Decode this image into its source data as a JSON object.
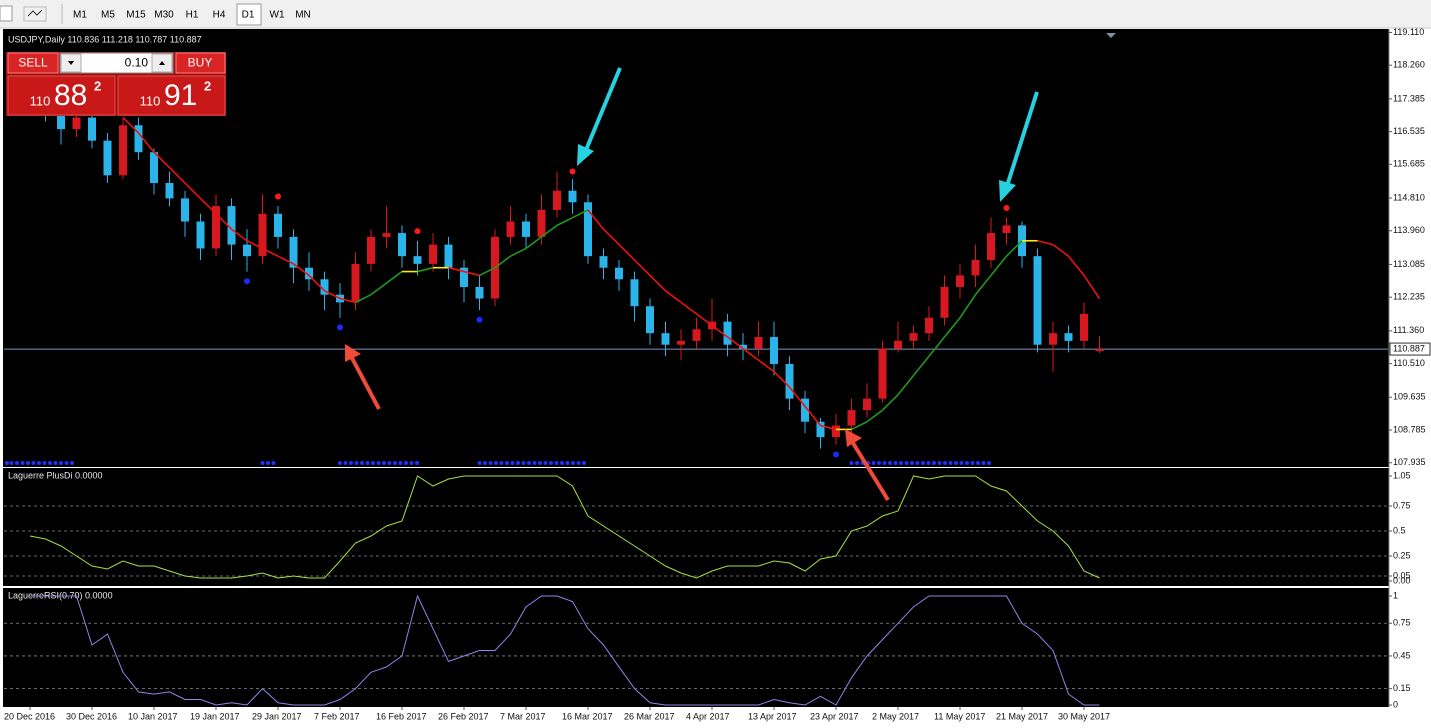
{
  "toolbar": {
    "timeframes": [
      "M1",
      "M5",
      "M15",
      "M30",
      "H1",
      "H4",
      "D1",
      "W1",
      "MN"
    ],
    "active": 6
  },
  "trade_panel": {
    "sell": "SELL",
    "buy": "BUY",
    "volume": "0.10",
    "bid": {
      "big": "110",
      "figure": "88",
      "point": "2"
    },
    "ask": {
      "big": "110",
      "figure": "91",
      "point": "2"
    }
  },
  "chart_data": [
    {
      "type": "candlestick",
      "title": "USDJPY,Daily 110.836 111.218 110.787 110.887",
      "categories": [
        "20 Dec 2016",
        null,
        null,
        null,
        "30 Dec 2016",
        null,
        null,
        null,
        "10 Jan 2017",
        null,
        null,
        null,
        "19 Jan 2017",
        null,
        null,
        null,
        "29 Jan 2017",
        null,
        null,
        null,
        "7 Feb 2017",
        null,
        null,
        null,
        "16 Feb 2017",
        null,
        null,
        null,
        "26 Feb 2017",
        null,
        null,
        null,
        "7 Mar 2017",
        null,
        null,
        null,
        "16 Mar 2017",
        null,
        null,
        null,
        "26 Mar 2017",
        null,
        null,
        null,
        "4 Apr 2017",
        null,
        null,
        null,
        "13 Apr 2017",
        null,
        null,
        null,
        "23 Apr 2017",
        null,
        null,
        null,
        "2 May 2017",
        null,
        null,
        null,
        "11 May 2017",
        null,
        null,
        null,
        "21 May 2017",
        null,
        null,
        null,
        "30 May 2017",
        null
      ],
      "open": [
        117.6,
        117.4,
        117.0,
        116.6,
        116.9,
        116.3,
        115.4,
        116.7,
        116.0,
        115.2,
        114.8,
        114.2,
        113.5,
        114.6,
        113.6,
        113.3,
        114.4,
        113.8,
        113.0,
        112.7,
        112.3,
        112.1,
        113.1,
        113.8,
        113.9,
        113.3,
        113.1,
        113.6,
        113.0,
        112.5,
        112.2,
        113.8,
        114.2,
        113.8,
        114.5,
        115.0,
        114.7,
        113.3,
        113.0,
        112.7,
        112.0,
        111.3,
        111.0,
        111.1,
        111.4,
        111.6,
        111.0,
        110.9,
        111.2,
        110.5,
        109.6,
        109.0,
        108.6,
        108.9,
        109.3,
        109.6,
        110.9,
        111.1,
        111.3,
        111.7,
        112.5,
        112.8,
        113.2,
        113.9,
        114.1,
        113.3,
        111.0,
        111.3,
        111.1,
        110.836
      ],
      "high": [
        117.9,
        117.7,
        117.2,
        117.1,
        117.1,
        116.5,
        116.9,
        116.9,
        116.1,
        115.5,
        115.0,
        114.4,
        114.9,
        114.8,
        114.0,
        114.9,
        114.6,
        114.0,
        113.4,
        112.9,
        112.6,
        113.4,
        114.0,
        114.6,
        114.1,
        113.7,
        113.9,
        113.8,
        113.2,
        112.8,
        114.0,
        114.6,
        114.4,
        114.9,
        115.5,
        115.3,
        114.9,
        113.5,
        113.2,
        112.9,
        112.2,
        111.6,
        111.4,
        111.7,
        112.2,
        111.8,
        111.3,
        111.6,
        111.6,
        110.7,
        109.8,
        109.1,
        109.2,
        109.6,
        110.0,
        111.1,
        111.6,
        111.5,
        112.0,
        112.8,
        113.1,
        113.6,
        114.3,
        114.3,
        114.2,
        113.5,
        111.6,
        111.5,
        112.1,
        111.218
      ],
      "low": [
        117.1,
        116.8,
        116.2,
        116.4,
        116.1,
        115.2,
        115.3,
        115.8,
        114.9,
        114.6,
        113.8,
        113.2,
        113.3,
        113.2,
        112.9,
        113.1,
        113.5,
        112.6,
        112.4,
        111.9,
        111.7,
        111.9,
        112.9,
        113.5,
        113.0,
        112.8,
        112.9,
        112.7,
        112.1,
        111.9,
        112.0,
        113.6,
        113.5,
        113.6,
        114.3,
        114.4,
        113.1,
        112.7,
        112.4,
        111.6,
        111.0,
        110.7,
        110.6,
        110.9,
        111.1,
        110.7,
        110.6,
        110.7,
        110.2,
        109.3,
        108.7,
        108.3,
        108.4,
        108.7,
        109.1,
        109.5,
        110.8,
        110.9,
        111.1,
        111.5,
        112.2,
        112.5,
        113.0,
        113.6,
        113.0,
        110.8,
        110.3,
        110.8,
        110.9,
        110.787
      ],
      "close": [
        117.4,
        117.0,
        116.6,
        116.9,
        116.3,
        115.4,
        116.7,
        116.0,
        115.2,
        114.8,
        114.2,
        113.5,
        114.6,
        113.6,
        113.3,
        114.4,
        113.8,
        113.0,
        112.7,
        112.3,
        112.1,
        113.1,
        113.8,
        113.9,
        113.3,
        113.1,
        113.6,
        113.0,
        112.5,
        112.2,
        113.8,
        114.2,
        113.8,
        114.5,
        115.0,
        114.7,
        113.3,
        113.0,
        112.7,
        112.0,
        111.3,
        111.0,
        111.1,
        111.4,
        111.6,
        111.0,
        110.9,
        111.2,
        110.5,
        109.6,
        109.0,
        108.6,
        108.9,
        109.3,
        109.6,
        110.9,
        111.1,
        111.3,
        111.7,
        112.5,
        112.8,
        113.2,
        113.9,
        114.1,
        113.3,
        111.0,
        111.3,
        111.1,
        111.8,
        110.887
      ],
      "up_color": "#d81820",
      "down_color": "#2ab4ea",
      "ma": {
        "up_color": "#1e9a1e",
        "down_color": "#f01010",
        "flat_color": "#ffee00",
        "values": [
          null,
          null,
          null,
          null,
          null,
          null,
          116.9,
          116.5,
          116.0,
          115.6,
          115.2,
          114.8,
          114.4,
          114.0,
          113.7,
          113.5,
          113.3,
          113.1,
          112.8,
          112.4,
          112.2,
          112.1,
          112.3,
          112.6,
          112.9,
          112.9,
          113.0,
          113.0,
          112.9,
          112.8,
          113.0,
          113.3,
          113.5,
          113.8,
          114.1,
          114.3,
          114.5,
          114.0,
          113.6,
          113.2,
          112.8,
          112.4,
          112.1,
          111.8,
          111.5,
          111.2,
          110.9,
          110.6,
          110.3,
          109.9,
          109.4,
          108.9,
          108.8,
          108.8,
          109.0,
          109.3,
          109.7,
          110.2,
          110.7,
          111.2,
          111.7,
          112.3,
          112.8,
          113.3,
          113.7,
          113.7,
          113.6,
          113.3,
          112.8,
          112.2
        ]
      },
      "signal_up": {
        "color": "#ff1a1a",
        "values": [
          null,
          null,
          null,
          null,
          null,
          null,
          null,
          null,
          null,
          null,
          null,
          null,
          null,
          null,
          null,
          null,
          114.85,
          null,
          null,
          null,
          null,
          null,
          null,
          null,
          null,
          113.95,
          null,
          null,
          null,
          null,
          null,
          null,
          null,
          null,
          null,
          115.5,
          null,
          null,
          null,
          null,
          null,
          null,
          null,
          null,
          null,
          null,
          null,
          null,
          null,
          null,
          null,
          null,
          null,
          null,
          null,
          null,
          null,
          null,
          null,
          null,
          null,
          null,
          null,
          114.55,
          null,
          null,
          null,
          null,
          null,
          null
        ]
      },
      "signal_down": {
        "color": "#1a2aff",
        "values": [
          null,
          null,
          null,
          null,
          null,
          null,
          null,
          null,
          null,
          null,
          null,
          null,
          null,
          null,
          112.65,
          null,
          null,
          null,
          null,
          null,
          111.45,
          null,
          null,
          null,
          null,
          null,
          null,
          null,
          null,
          111.65,
          null,
          null,
          null,
          null,
          null,
          null,
          null,
          null,
          null,
          null,
          null,
          null,
          null,
          null,
          null,
          null,
          null,
          null,
          null,
          null,
          null,
          null,
          108.15,
          null,
          null,
          null,
          null,
          null,
          null,
          null,
          null,
          null,
          null,
          null,
          null,
          null,
          null,
          null,
          null,
          null
        ]
      },
      "last_price": 110.887,
      "ylim": [
        107.85,
        119.2
      ],
      "yticks": [
        {
          "value": 119.11,
          "label": "119.110"
        },
        {
          "value": 118.26,
          "label": "118.260"
        },
        117.385,
        116.535,
        115.685,
        {
          "value": 114.81,
          "label": "114.810"
        },
        {
          "value": 113.96,
          "label": "113.960"
        },
        113.085,
        112.235,
        {
          "value": 111.36,
          "label": "111.360"
        },
        {
          "value": 110.51,
          "label": "110.510"
        },
        109.635,
        108.785,
        107.935
      ],
      "grid": false
    },
    {
      "type": "line",
      "title": "Laguerre PlusDi 0.0000",
      "color": "#a8e040",
      "values": [
        0.45,
        0.42,
        0.35,
        0.25,
        0.15,
        0.12,
        0.2,
        0.15,
        0.15,
        0.1,
        0.05,
        0.03,
        0.03,
        0.03,
        0.05,
        0.08,
        0.03,
        0.05,
        0.03,
        0.03,
        0.2,
        0.38,
        0.45,
        0.55,
        0.6,
        1.05,
        0.95,
        1.02,
        1.05,
        1.05,
        1.05,
        1.05,
        1.05,
        1.05,
        1.05,
        0.95,
        0.65,
        0.55,
        0.45,
        0.35,
        0.25,
        0.15,
        0.08,
        0.03,
        0.1,
        0.15,
        0.15,
        0.15,
        0.2,
        0.18,
        0.1,
        0.22,
        0.25,
        0.5,
        0.55,
        0.65,
        0.7,
        1.05,
        1.02,
        1.05,
        1.05,
        1.05,
        0.95,
        0.9,
        0.75,
        0.6,
        0.5,
        0.35,
        0.1,
        0.03
      ],
      "ylim": [
        0,
        1.05
      ],
      "yticks": [
        1.05,
        0.75,
        0.5,
        0.25,
        0.05,
        {
          "value": 0,
          "label": "0.00"
        }
      ],
      "grid": true
    },
    {
      "type": "line",
      "title": "LaguerreRSI(0.70) 0.0000",
      "color": "#8c86e8",
      "values": [
        1,
        1,
        1,
        1,
        0.55,
        0.65,
        0.3,
        0.12,
        0.1,
        0.12,
        0.05,
        0.05,
        0,
        0.02,
        0,
        0.15,
        0.02,
        0,
        0,
        0,
        0.05,
        0.15,
        0.3,
        0.35,
        0.45,
        1,
        0.7,
        0.4,
        0.45,
        0.5,
        0.5,
        0.65,
        0.9,
        1,
        1,
        0.95,
        0.7,
        0.55,
        0.35,
        0.15,
        0.02,
        0,
        0,
        0,
        0,
        0,
        0,
        0,
        0.05,
        0.02,
        0,
        0.08,
        0,
        0.25,
        0.45,
        0.6,
        0.75,
        0.9,
        1,
        1,
        1,
        1,
        1,
        1,
        0.75,
        0.65,
        0.5,
        0.1,
        0,
        0
      ],
      "ylim": [
        0,
        1
      ],
      "yticks": [
        1,
        0.75,
        0.45,
        0.15,
        0
      ],
      "grid": true
    }
  ]
}
